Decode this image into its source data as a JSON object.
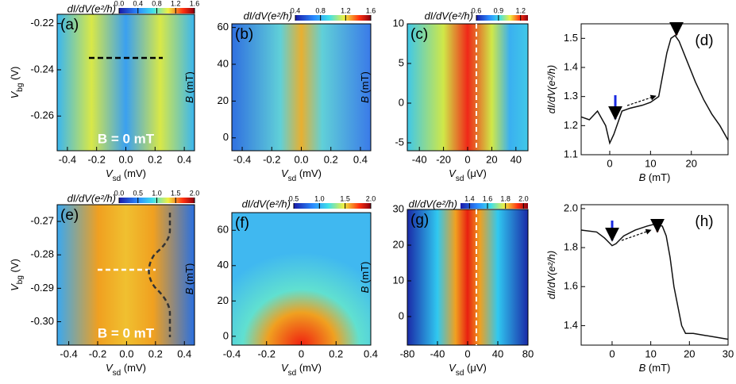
{
  "chart_data": [
    {
      "type": "heatmap",
      "panel_label": "(a)",
      "annotation": "B = 0 mT",
      "xlabel": [
        {
          "text": "V"
        },
        {
          "text": "sd",
          "sub": true
        },
        {
          "text": " (mV)"
        }
      ],
      "ylabel": [
        {
          "text": "V"
        },
        {
          "text": "bg",
          "sub": true
        },
        {
          "text": " (V)"
        }
      ],
      "xlim": [
        -0.47,
        0.47
      ],
      "xticks": [
        -0.4,
        -0.2,
        {
          "value": 0,
          "label": "0.0"
        },
        0.2,
        0.4
      ],
      "ylim": [
        -0.275,
        -0.216
      ],
      "yticks": [
        -0.22,
        -0.24,
        -0.26
      ],
      "colorbar_label": "dI/dV(e²/h)",
      "colorbar_lim": [
        0,
        1.6
      ],
      "colorbar_ticks": [
        {
          "value": 0,
          "label": "0.0"
        },
        0.4,
        0.8,
        1.2,
        1.6
      ]
    },
    {
      "type": "heatmap",
      "panel_label": "(b)",
      "xlabel": [
        {
          "text": "V"
        },
        {
          "text": "sd",
          "sub": true
        },
        {
          "text": " (mV)"
        }
      ],
      "ylabel": [
        {
          "text": "B"
        },
        {
          "text": " (mT)"
        }
      ],
      "xlim": [
        -0.47,
        0.47
      ],
      "xticks": [
        -0.4,
        -0.2,
        {
          "value": 0,
          "label": "0.0"
        },
        0.2,
        0.4
      ],
      "ylim": [
        -7,
        62
      ],
      "yticks": [
        0,
        20,
        40,
        60
      ],
      "colorbar_label": "dI/dV(e²/h)",
      "colorbar_lim": [
        0.4,
        1.6
      ],
      "colorbar_ticks": [
        0.4,
        0.8,
        1.2,
        1.6
      ]
    },
    {
      "type": "heatmap",
      "panel_label": "(c)",
      "xlabel": [
        {
          "text": "V"
        },
        {
          "text": "sd",
          "sub": true
        },
        {
          "text": " (μV)"
        }
      ],
      "ylabel": [
        {
          "text": "B"
        },
        {
          "text": " (mT)"
        }
      ],
      "xlim": [
        -50,
        50
      ],
      "xticks": [
        -40,
        -20,
        0,
        20,
        40
      ],
      "ylim": [
        -6,
        10
      ],
      "yticks": [
        -5,
        0,
        5,
        10
      ],
      "colorbar_label": "dI/dV(e²/h)",
      "colorbar_lim": [
        0.6,
        1.3
      ],
      "colorbar_ticks": [
        0.6,
        0.9,
        1.2
      ]
    },
    {
      "type": "line",
      "panel_label": "(d)",
      "xlabel": [
        {
          "text": "B"
        },
        {
          "text": " (mT)"
        }
      ],
      "ylabel": [
        {
          "text": "dI/dV(e²/h)"
        }
      ],
      "x": [
        -7,
        -5,
        -3,
        -1,
        0,
        1,
        3,
        5,
        8,
        10,
        12,
        14,
        15,
        16,
        17,
        19,
        21,
        23,
        25,
        27,
        29
      ],
      "values": [
        1.23,
        1.22,
        1.25,
        1.2,
        1.14,
        1.17,
        1.25,
        1.26,
        1.27,
        1.28,
        1.3,
        1.45,
        1.5,
        1.51,
        1.49,
        1.42,
        1.35,
        1.29,
        1.24,
        1.2,
        1.15
      ],
      "color": "#111111",
      "xlim": [
        -7,
        29
      ],
      "xticks": [
        0,
        10,
        20
      ],
      "ylim": [
        1.1,
        1.55
      ],
      "yticks": [
        1.1,
        1.2,
        1.3,
        1.4,
        1.5
      ]
    },
    {
      "type": "heatmap",
      "panel_label": "(e)",
      "annotation": "B = 0 mT",
      "xlabel": [
        {
          "text": "V"
        },
        {
          "text": "sd",
          "sub": true
        },
        {
          "text": " (mV)"
        }
      ],
      "ylabel": [
        {
          "text": "V"
        },
        {
          "text": "bg",
          "sub": true
        },
        {
          "text": " (V)"
        }
      ],
      "xlim": [
        -0.48,
        0.47
      ],
      "xticks": [
        -0.4,
        -0.2,
        {
          "value": 0,
          "label": "0.0"
        },
        0.2,
        0.4
      ],
      "ylim": [
        -0.307,
        -0.265
      ],
      "yticks": [
        -0.27,
        -0.28,
        -0.29,
        {
          "value": -0.3,
          "label": "-0.30"
        }
      ],
      "colorbar_label": "dI/dV(e²/h)",
      "colorbar_lim": [
        0,
        2
      ],
      "colorbar_ticks": [
        {
          "value": 0,
          "label": "0.0"
        },
        0.5,
        {
          "value": 1,
          "label": "1.0"
        },
        1.5,
        {
          "value": 2,
          "label": "2.0"
        }
      ]
    },
    {
      "type": "heatmap",
      "panel_label": "(f)",
      "xlabel": [
        {
          "text": "V"
        },
        {
          "text": "sd",
          "sub": true
        },
        {
          "text": " (mV)"
        }
      ],
      "ylabel": [
        {
          "text": "B"
        },
        {
          "text": " (mT)"
        }
      ],
      "xlim": [
        -0.4,
        0.4
      ],
      "xticks": [
        -0.4,
        -0.2,
        0,
        0.2,
        0.4
      ],
      "ylim": [
        -5,
        70
      ],
      "yticks": [
        0,
        20,
        40,
        60
      ],
      "colorbar_label": "dI/dV(e²/h)",
      "colorbar_lim": [
        0.5,
        2
      ],
      "colorbar_ticks": [
        0.5,
        {
          "value": 1,
          "label": "1.0"
        },
        1.5,
        {
          "value": 2,
          "label": "2.0"
        }
      ]
    },
    {
      "type": "heatmap",
      "panel_label": "(g)",
      "xlabel": [
        {
          "text": "V"
        },
        {
          "text": "sd",
          "sub": true
        },
        {
          "text": " (μV)"
        }
      ],
      "ylabel": [
        {
          "text": "B"
        },
        {
          "text": " (mT)"
        }
      ],
      "xlim": [
        -80,
        80
      ],
      "xticks": [
        -80,
        -40,
        0,
        40,
        80
      ],
      "ylim": [
        -8,
        30
      ],
      "yticks": [
        0,
        10,
        20,
        30
      ],
      "colorbar_label": "dI/dV(e²/h)",
      "colorbar_lim": [
        1.3,
        2.05
      ],
      "colorbar_ticks": [
        1.4,
        1.6,
        1.8,
        {
          "value": 2,
          "label": "2.0"
        }
      ]
    },
    {
      "type": "line",
      "panel_label": "(h)",
      "xlabel": [
        {
          "text": "B"
        },
        {
          "text": " (mT)"
        }
      ],
      "ylabel": [
        {
          "text": "dI/dV(e²/h)"
        }
      ],
      "x": [
        -8,
        -4,
        -2,
        0,
        1,
        3,
        6,
        9,
        11,
        13,
        14,
        15,
        16,
        17,
        18,
        19,
        21,
        24,
        27,
        30
      ],
      "values": [
        1.89,
        1.88,
        1.85,
        1.81,
        1.82,
        1.86,
        1.89,
        1.91,
        1.92,
        1.91,
        1.86,
        1.75,
        1.6,
        1.5,
        1.4,
        1.36,
        1.36,
        1.35,
        1.34,
        1.33
      ],
      "color": "#111111",
      "xlim": [
        -8,
        30
      ],
      "xticks": [
        0,
        10,
        20,
        30
      ],
      "ylim": [
        1.3,
        2.02
      ],
      "yticks": [
        1.4,
        1.6,
        1.8,
        {
          "value": 2,
          "label": "2.0"
        }
      ]
    }
  ]
}
